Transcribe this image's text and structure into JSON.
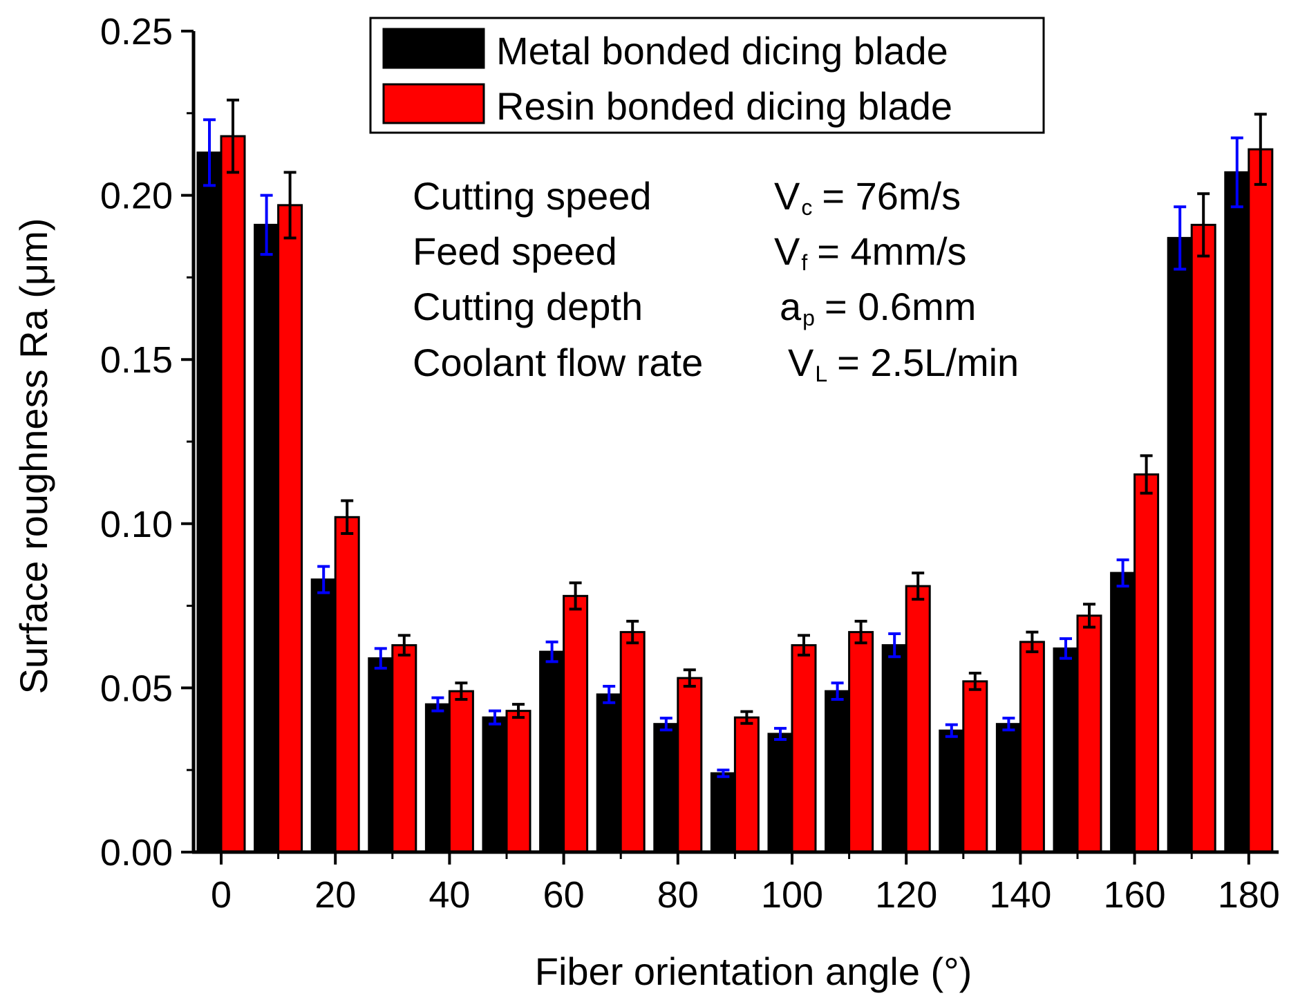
{
  "chart_data": {
    "type": "bar",
    "title": "",
    "xlabel": "Fiber orientation angle (°)",
    "ylabel": "Surface roughness Ra (μm)",
    "ylim": [
      0,
      0.25
    ],
    "yticks": [
      "0.00",
      "0.05",
      "0.10",
      "0.15",
      "0.20",
      "0.25"
    ],
    "xlim": [
      -5,
      185
    ],
    "xticks": [
      "0",
      "20",
      "40",
      "60",
      "80",
      "100",
      "120",
      "140",
      "160",
      "180"
    ],
    "categories": [
      0,
      10,
      20,
      30,
      40,
      50,
      60,
      70,
      80,
      90,
      100,
      110,
      120,
      130,
      140,
      150,
      160,
      170,
      180
    ],
    "grid": false,
    "legend_position": "top",
    "series": [
      {
        "name": "Metal bonded dicing blade",
        "color": "#000000",
        "error_color": "#0000ff",
        "values": [
          0.213,
          0.191,
          0.083,
          0.059,
          0.045,
          0.041,
          0.061,
          0.048,
          0.039,
          0.024,
          0.036,
          0.049,
          0.063,
          0.037,
          0.039,
          0.062,
          0.085,
          0.187,
          0.207
        ],
        "errors": [
          0.01,
          0.009,
          0.004,
          0.003,
          0.002,
          0.002,
          0.003,
          0.0025,
          0.0018,
          0.001,
          0.0017,
          0.0025,
          0.0035,
          0.0018,
          0.0018,
          0.003,
          0.004,
          0.0095,
          0.0105
        ]
      },
      {
        "name": "Resin bonded dicing blade",
        "color": "#ff0000",
        "error_color": "#000000",
        "values": [
          0.218,
          0.197,
          0.102,
          0.063,
          0.049,
          0.043,
          0.078,
          0.067,
          0.053,
          0.041,
          0.063,
          0.067,
          0.081,
          0.052,
          0.064,
          0.072,
          0.115,
          0.191,
          0.214
        ],
        "errors": [
          0.011,
          0.01,
          0.005,
          0.003,
          0.0025,
          0.002,
          0.004,
          0.0033,
          0.0025,
          0.0018,
          0.003,
          0.0033,
          0.004,
          0.0025,
          0.003,
          0.0035,
          0.0057,
          0.0095,
          0.0107
        ]
      }
    ],
    "annotations": {
      "lines": [
        {
          "label": "Cutting speed",
          "sym": "V",
          "sub": "c",
          "value": "= 76m/s"
        },
        {
          "label": "Feed speed",
          "sym": "V",
          "sub": "f",
          "value": "= 4mm/s"
        },
        {
          "label": "Cutting depth",
          "sym": "a",
          "sub": "p",
          "value": "= 0.6mm"
        },
        {
          "label": "Coolant flow rate",
          "sym": "V",
          "sub": "L",
          "value": "= 2.5L/min"
        }
      ]
    }
  }
}
